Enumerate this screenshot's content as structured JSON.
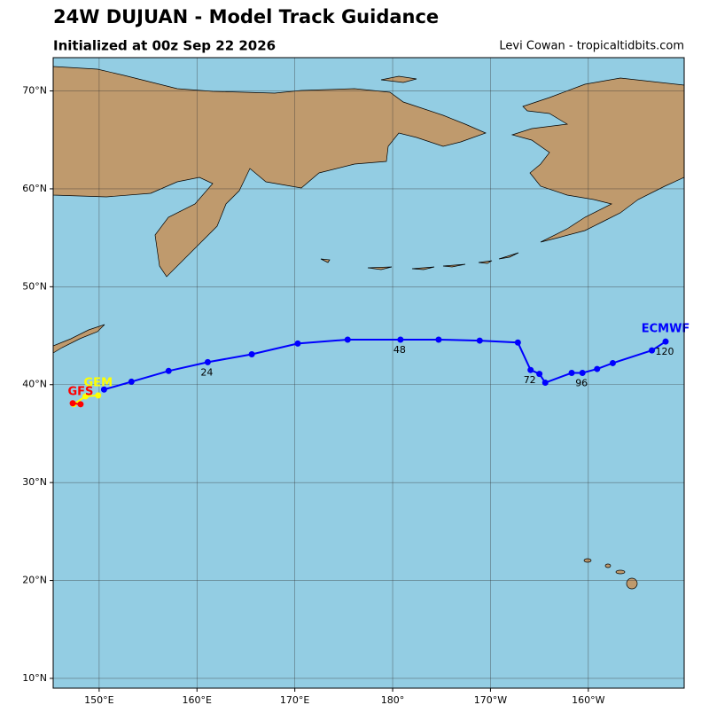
{
  "title": "24W DUJUAN - Model Track Guidance",
  "subtitle": "Initialized at 00z Sep 22 2026",
  "credit": "Levi Cowan - tropicaltidbits.com",
  "map": {
    "lonlim": [
      145.3,
      209.8
    ],
    "latlim": [
      9.0,
      73.4
    ],
    "grid": true,
    "lon_ticks": [
      {
        "value": 150,
        "label": "150°E"
      },
      {
        "value": 160,
        "label": "160°E"
      },
      {
        "value": 170,
        "label": "170°E"
      },
      {
        "value": 180,
        "label": "180°"
      },
      {
        "value": 190,
        "label": "170°W"
      },
      {
        "value": 200,
        "label": "160°W"
      }
    ],
    "lat_ticks": [
      {
        "value": 10,
        "label": "10°N"
      },
      {
        "value": 20,
        "label": "20°N"
      },
      {
        "value": 30,
        "label": "30°N"
      },
      {
        "value": 40,
        "label": "40°N"
      },
      {
        "value": 50,
        "label": "50°N"
      },
      {
        "value": 60,
        "label": "60°N"
      },
      {
        "value": 70,
        "label": "70°N"
      }
    ],
    "tracks": [
      {
        "name": "ECMWF",
        "color": "#0000ff",
        "lon": [
          150.5,
          153.3,
          157.1,
          161.1,
          165.6,
          170.3,
          175.4,
          180.8,
          184.7,
          188.9,
          192.8,
          194.1,
          195.0,
          195.6,
          198.3,
          199.4,
          200.9,
          202.5,
          206.5,
          207.9
        ],
        "lat": [
          39.5,
          40.3,
          41.4,
          42.3,
          43.1,
          44.2,
          44.6,
          44.6,
          44.6,
          44.5,
          44.3,
          41.5,
          41.1,
          40.2,
          41.2,
          41.2,
          41.6,
          42.2,
          43.5,
          44.4
        ],
        "point_labels": [
          null,
          null,
          null,
          "24",
          null,
          null,
          null,
          "48",
          null,
          null,
          null,
          "72",
          null,
          null,
          null,
          "96",
          null,
          null,
          null,
          "120"
        ]
      },
      {
        "name": "GEM",
        "color": "#ffff00",
        "lon": [
          147.4,
          148.6,
          149.9
        ],
        "lat": [
          38.0,
          38.8,
          38.9
        ]
      },
      {
        "name": "GFS",
        "color": "#ff0000",
        "lon": [
          147.3,
          148.1
        ],
        "lat": [
          38.1,
          38.0
        ]
      }
    ]
  }
}
